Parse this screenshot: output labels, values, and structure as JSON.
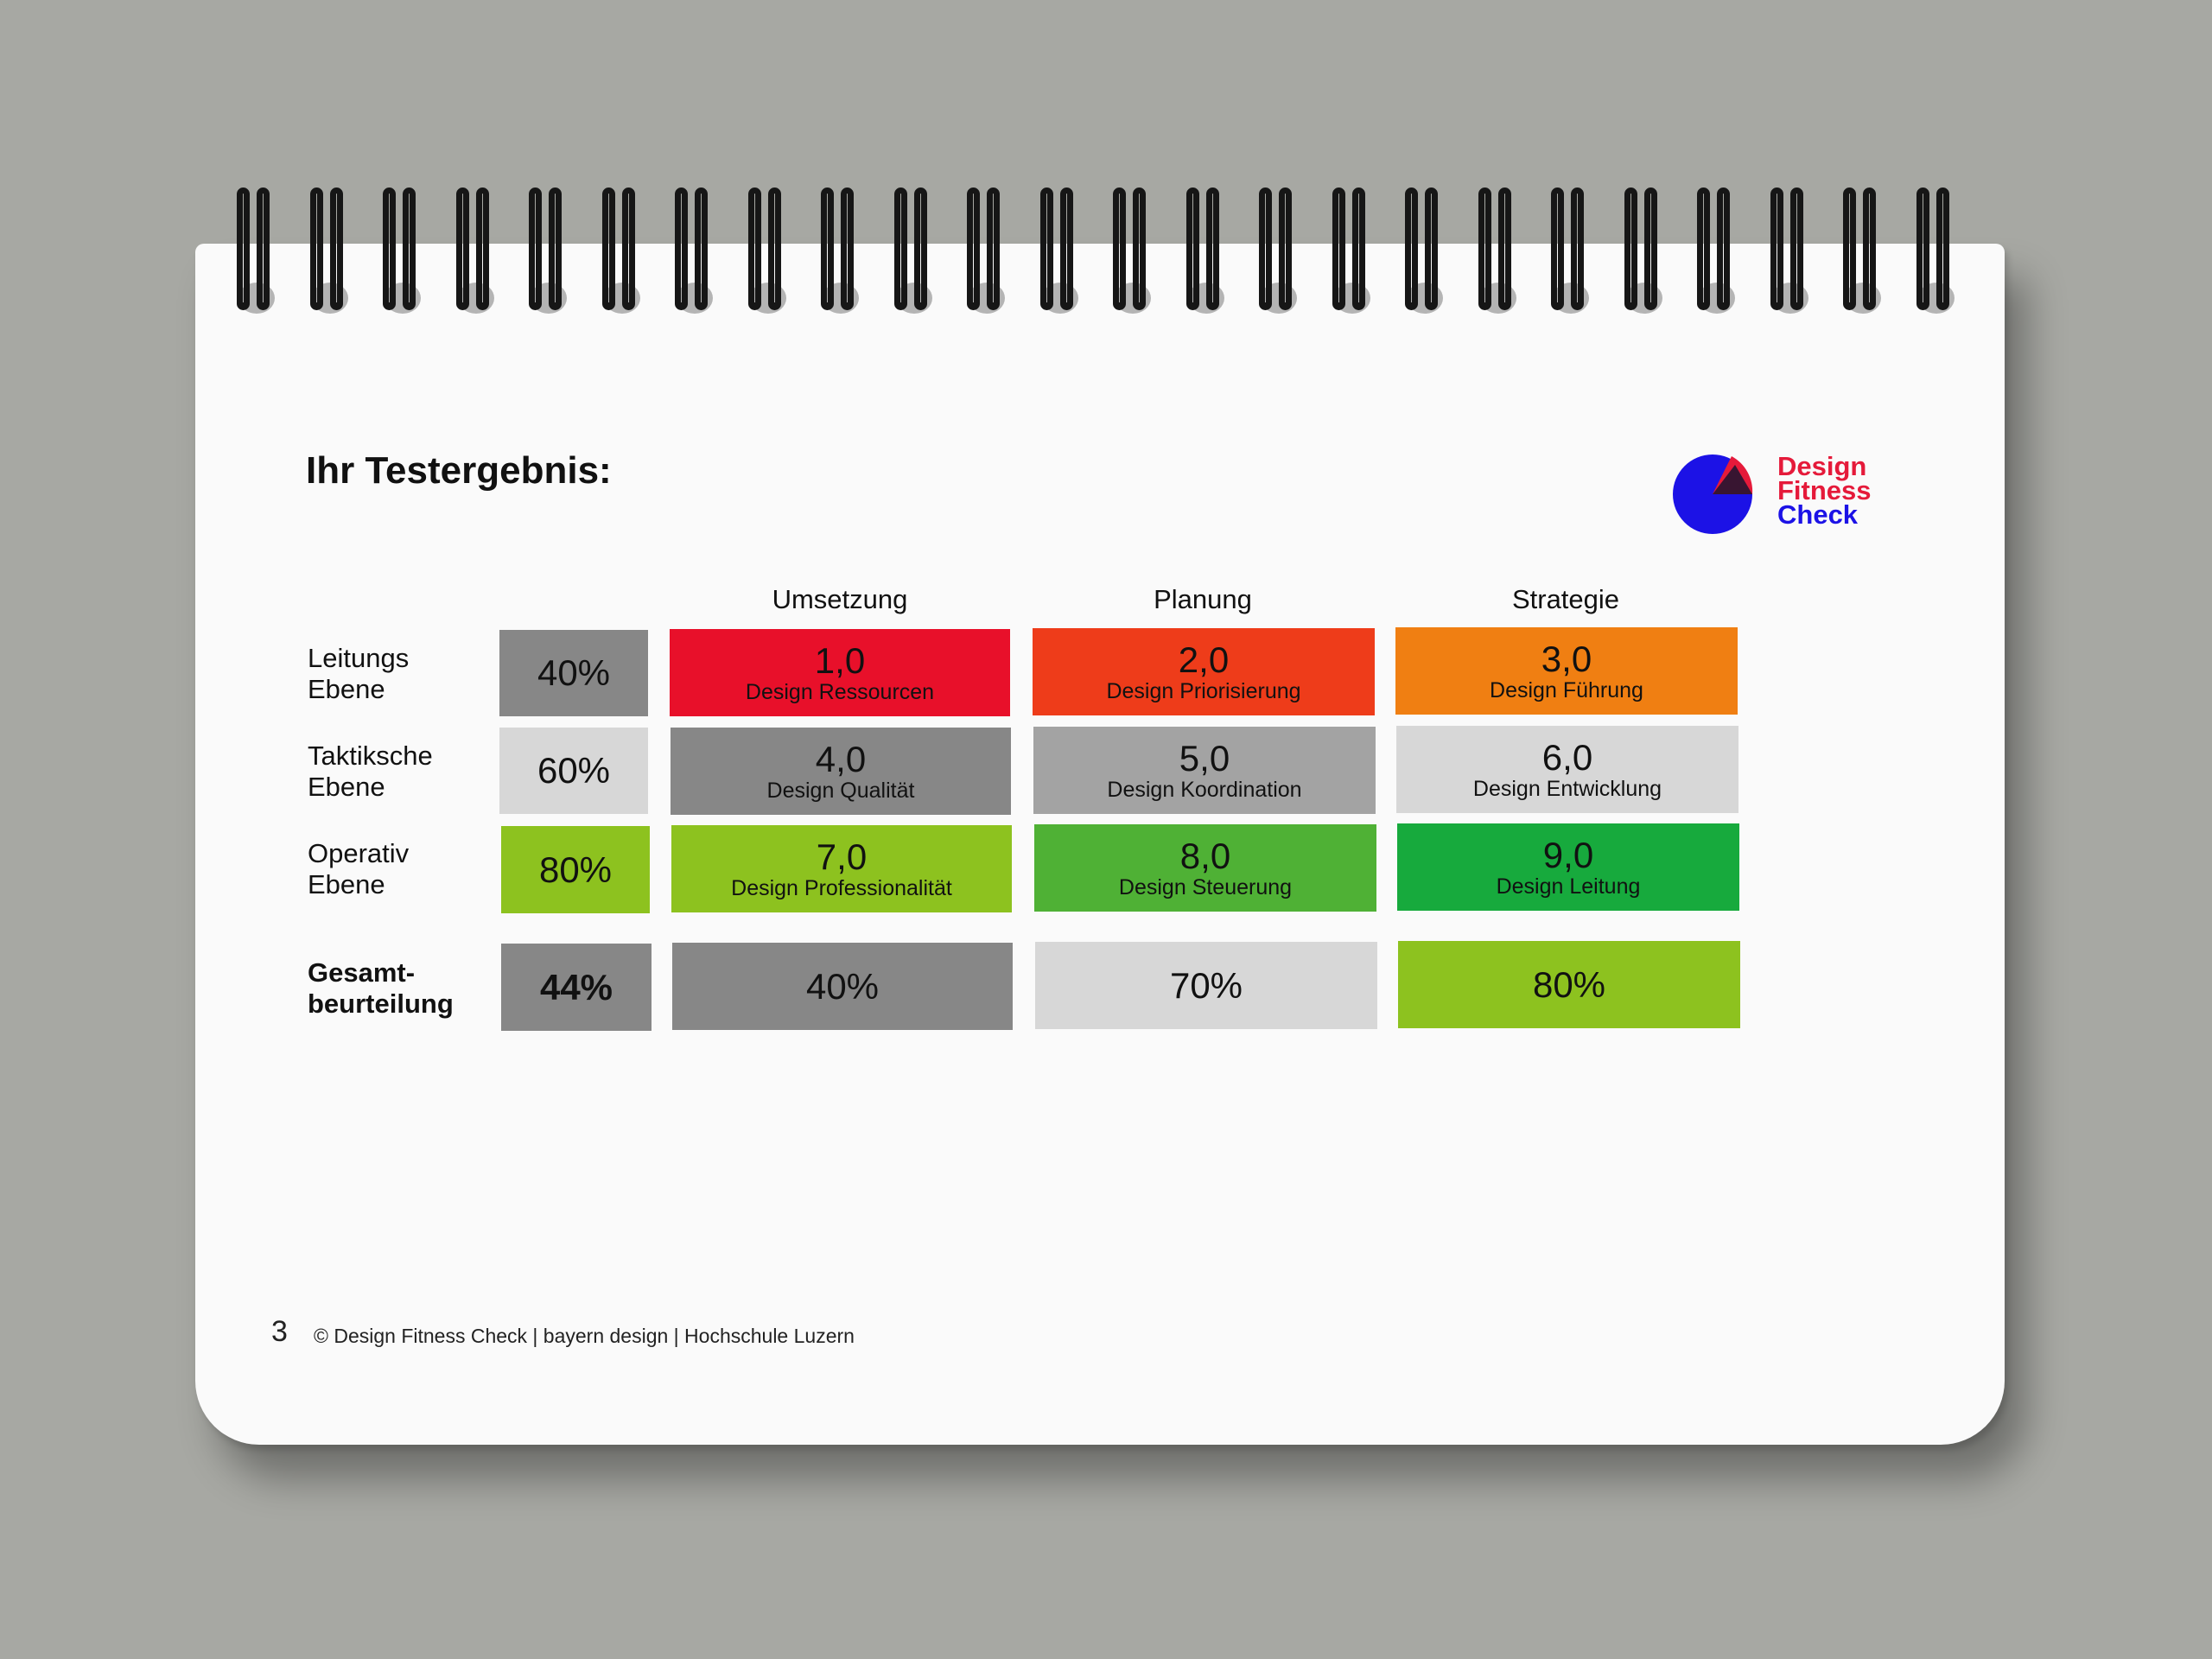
{
  "title": "Ihr Testergebnis:",
  "logo": {
    "line1": "Design",
    "line2": "Fitness",
    "line3": "Check"
  },
  "columns": [
    "Umsetzung",
    "Planung",
    "Strategie"
  ],
  "rows": [
    {
      "label_line1": "Leitungs",
      "label_line2": "Ebene",
      "percent": "40%",
      "cells": [
        {
          "value": "1,0",
          "name": "Design Ressourcen",
          "color": "#e8102a"
        },
        {
          "value": "2,0",
          "name": "Design Priorisierung",
          "color": "#ee3c1a"
        },
        {
          "value": "3,0",
          "name": "Design Führung",
          "color": "#f07f12"
        }
      ]
    },
    {
      "label_line1": "Taktiksche",
      "label_line2": "Ebene",
      "percent": "60%",
      "cells": [
        {
          "value": "4,0",
          "name": "Design Qualität",
          "color": "#878787"
        },
        {
          "value": "5,0",
          "name": "Design Koordination",
          "color": "#a3a3a3"
        },
        {
          "value": "6,0",
          "name": "Design Entwicklung",
          "color": "#d7d7d7"
        }
      ]
    },
    {
      "label_line1": "Operativ",
      "label_line2": "Ebene",
      "percent": "80%",
      "cells": [
        {
          "value": "7,0",
          "name": "Design Professionalität",
          "color": "#8dc21f"
        },
        {
          "value": "8,0",
          "name": "Design Steuerung",
          "color": "#4fb135"
        },
        {
          "value": "9,0",
          "name": "Design Leitung",
          "color": "#17aa3d"
        }
      ]
    }
  ],
  "total": {
    "label_line1": "Gesamt-",
    "label_line2": "beurteilung",
    "percent": "44%",
    "cells": [
      {
        "value": "40%",
        "color": "#878787"
      },
      {
        "value": "70%",
        "color": "#d7d7d7"
      },
      {
        "value": "80%",
        "color": "#8dc21f"
      }
    ]
  },
  "percent_colors": {
    "row0": "#878787",
    "row1": "#d7d7d7",
    "row2": "#8dc21f",
    "total": "#878787"
  },
  "footer": {
    "page": "3",
    "text": "© Design Fitness Check | bayern design | Hochschule Luzern"
  },
  "colors": {
    "logo_red": "#e51a3a",
    "logo_blue": "#1c12e6",
    "background": "#a7a8a3",
    "paper": "#fafafa"
  }
}
